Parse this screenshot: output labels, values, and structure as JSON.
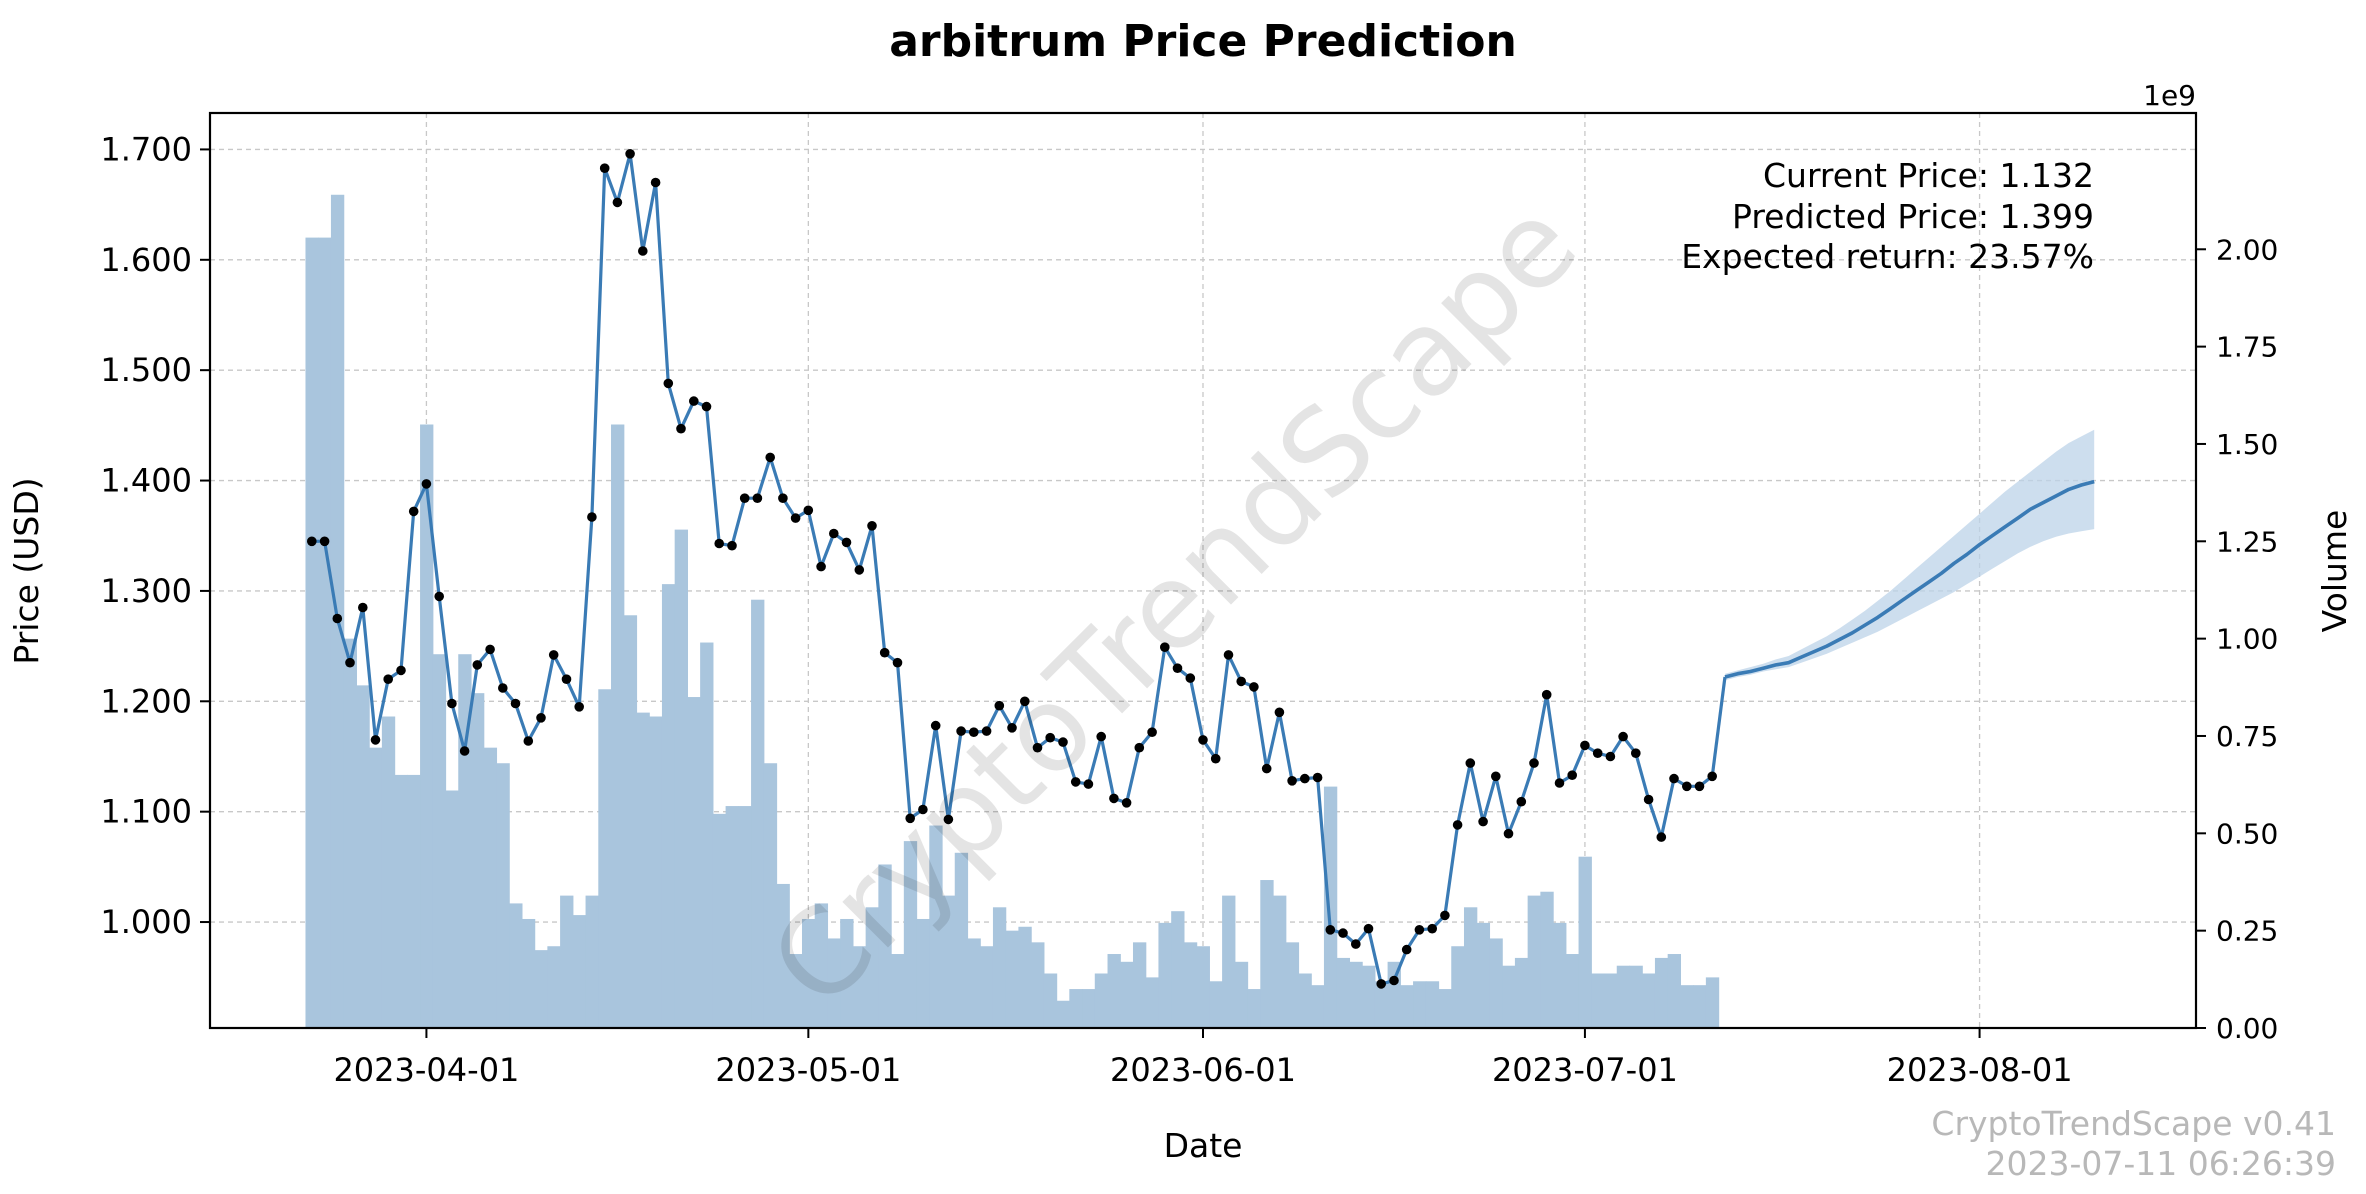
{
  "chart_data": {
    "type": "line",
    "title": "arbitrum Price Prediction",
    "xlabel": "Date",
    "ylabel": "Price (USD)",
    "y2label": "Volume",
    "y2_multiplier": "1e9",
    "watermark": "CryptoTrendScape",
    "footer": {
      "version": "CryptoTrendScape v0.41",
      "timestamp": "2023-07-11 06:26:39"
    },
    "info": {
      "current_price": "Current Price: 1.132",
      "predicted_price": "Predicted Price: 1.399",
      "expected_return": "Expected return: 23.57%"
    },
    "xlim": [
      "2023-03-15",
      "2023-08-18"
    ],
    "ylim": [
      0.904,
      1.733
    ],
    "y2lim": [
      0,
      2.35
    ],
    "x_ticks": [
      {
        "date": "2023-04-01",
        "label": "2023-04-01"
      },
      {
        "date": "2023-05-01",
        "label": "2023-05-01"
      },
      {
        "date": "2023-06-01",
        "label": "2023-06-01"
      },
      {
        "date": "2023-07-01",
        "label": "2023-07-01"
      },
      {
        "date": "2023-08-01",
        "label": "2023-08-01"
      }
    ],
    "y_ticks": [
      "1.000",
      "1.100",
      "1.200",
      "1.300",
      "1.400",
      "1.500",
      "1.600",
      "1.700"
    ],
    "y2_ticks": [
      "0.00",
      "0.25",
      "0.50",
      "0.75",
      "1.00",
      "1.25",
      "1.50",
      "1.75",
      "2.00"
    ],
    "grid": true,
    "colors": {
      "price_line": "#3a7bb5",
      "volume_bar": "#a9c5dd",
      "forecast_band": "#bcd3e8",
      "marker": "#000000"
    },
    "price_series": {
      "name": "Price",
      "start_date": "2023-03-23",
      "values": [
        1.345,
        1.345,
        1.275,
        1.235,
        1.285,
        1.165,
        1.22,
        1.228,
        1.372,
        1.397,
        1.295,
        1.198,
        1.155,
        1.233,
        1.247,
        1.212,
        1.198,
        1.164,
        1.185,
        1.242,
        1.22,
        1.195,
        1.367,
        1.683,
        1.652,
        1.696,
        1.608,
        1.67,
        1.488,
        1.447,
        1.472,
        1.467,
        1.343,
        1.341,
        1.384,
        1.384,
        1.421,
        1.384,
        1.366,
        1.373,
        1.322,
        1.352,
        1.344,
        1.319,
        1.359,
        1.244,
        1.235,
        1.094,
        1.102,
        1.178,
        1.093,
        1.173,
        1.172,
        1.173,
        1.196,
        1.176,
        1.2,
        1.158,
        1.167,
        1.163,
        1.127,
        1.125,
        1.168,
        1.112,
        1.108,
        1.158,
        1.172,
        1.249,
        1.23,
        1.221,
        1.165,
        1.148,
        1.242,
        1.218,
        1.213,
        1.139,
        1.19,
        1.128,
        1.13,
        1.131,
        0.993,
        0.99,
        0.98,
        0.994,
        0.944,
        0.947,
        0.975,
        0.993,
        0.994,
        1.006,
        1.088,
        1.144,
        1.091,
        1.132,
        1.08,
        1.109,
        1.144,
        1.206,
        1.126,
        1.133,
        1.16,
        1.153,
        1.15,
        1.168,
        1.153,
        1.111,
        1.077,
        1.13,
        1.123,
        1.123,
        1.132
      ]
    },
    "volume_series": {
      "name": "Volume",
      "start_date": "2023-03-23",
      "values": [
        2.03,
        2.03,
        2.14,
        1.0,
        0.88,
        0.72,
        0.8,
        0.65,
        0.65,
        1.55,
        0.96,
        0.61,
        0.96,
        0.86,
        0.72,
        0.68,
        0.32,
        0.28,
        0.2,
        0.21,
        0.34,
        0.29,
        0.34,
        0.87,
        1.55,
        1.06,
        0.81,
        0.8,
        1.14,
        1.28,
        0.85,
        0.99,
        0.55,
        0.57,
        0.57,
        1.1,
        0.68,
        0.37,
        0.19,
        0.28,
        0.32,
        0.23,
        0.28,
        0.21,
        0.31,
        0.42,
        0.19,
        0.48,
        0.28,
        0.52,
        0.34,
        0.45,
        0.23,
        0.21,
        0.31,
        0.25,
        0.26,
        0.22,
        0.14,
        0.07,
        0.1,
        0.1,
        0.14,
        0.19,
        0.17,
        0.22,
        0.13,
        0.27,
        0.3,
        0.22,
        0.21,
        0.12,
        0.34,
        0.17,
        0.1,
        0.38,
        0.34,
        0.22,
        0.14,
        0.11,
        0.62,
        0.18,
        0.17,
        0.16,
        0.12,
        0.17,
        0.11,
        0.12,
        0.12,
        0.1,
        0.21,
        0.31,
        0.27,
        0.23,
        0.16,
        0.18,
        0.34,
        0.35,
        0.27,
        0.19,
        0.44,
        0.14,
        0.14,
        0.16,
        0.16,
        0.14,
        0.18,
        0.19,
        0.11,
        0.11,
        0.13
      ]
    },
    "forecast": {
      "start_date": "2023-07-12",
      "values": [
        1.222,
        1.225,
        1.227,
        1.23,
        1.233,
        1.235,
        1.24,
        1.245,
        1.25,
        1.256,
        1.262,
        1.269,
        1.276,
        1.284,
        1.292,
        1.3,
        1.308,
        1.316,
        1.325,
        1.333,
        1.342,
        1.35,
        1.358,
        1.366,
        1.374,
        1.38,
        1.386,
        1.392,
        1.396,
        1.399
      ],
      "upper": [
        1.225,
        1.228,
        1.231,
        1.234,
        1.238,
        1.241,
        1.247,
        1.253,
        1.259,
        1.266,
        1.274,
        1.282,
        1.291,
        1.3,
        1.31,
        1.32,
        1.33,
        1.34,
        1.35,
        1.36,
        1.37,
        1.38,
        1.39,
        1.399,
        1.408,
        1.417,
        1.426,
        1.434,
        1.44,
        1.446
      ],
      "lower": [
        1.219,
        1.222,
        1.224,
        1.227,
        1.229,
        1.231,
        1.235,
        1.239,
        1.243,
        1.248,
        1.253,
        1.258,
        1.263,
        1.269,
        1.275,
        1.281,
        1.287,
        1.293,
        1.299,
        1.306,
        1.313,
        1.32,
        1.327,
        1.334,
        1.34,
        1.345,
        1.349,
        1.352,
        1.354,
        1.356
      ]
    }
  }
}
